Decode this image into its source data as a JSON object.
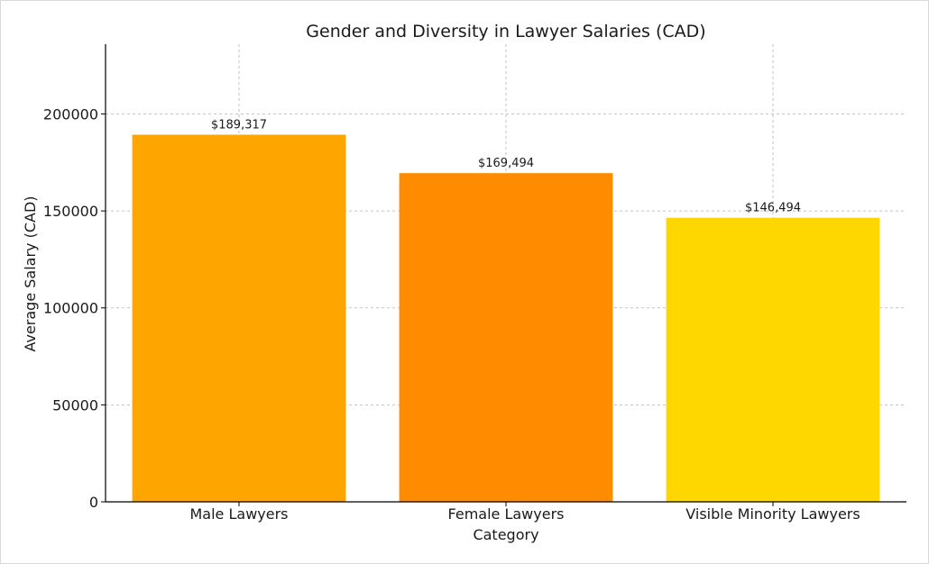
{
  "chart_data": {
    "type": "bar",
    "title": "Gender and Diversity in Lawyer Salaries (CAD)",
    "xlabel": "Category",
    "ylabel": "Average Salary (CAD)",
    "categories": [
      "Male Lawyers",
      "Female Lawyers",
      "Visible Minority Lawyers"
    ],
    "values": [
      189317,
      169494,
      146494
    ],
    "data_labels": [
      "$189,317",
      "$169,494",
      "$146,494"
    ],
    "colors": [
      "#FFA500",
      "#FF8C00",
      "#FFD700"
    ],
    "ylim": [
      0,
      236000
    ],
    "yticks": [
      0,
      50000,
      100000,
      150000,
      200000
    ],
    "ytick_labels": [
      "0",
      "50000",
      "100000",
      "150000",
      "200000"
    ],
    "grid": true,
    "legend": "none"
  }
}
